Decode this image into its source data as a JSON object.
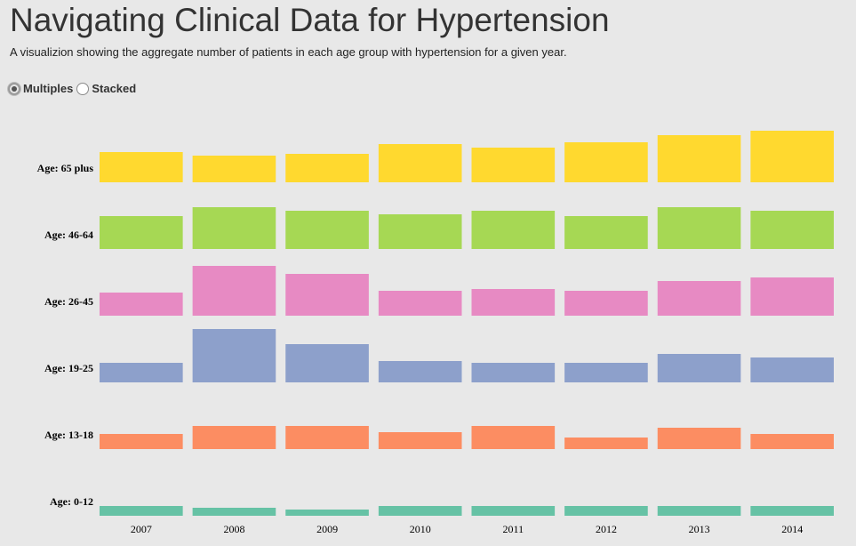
{
  "header": {
    "title": "Navigating Clinical Data for Hypertension",
    "subtitle": "A visualizion showing the aggregate number of patients in each age group with hypertension for a given year."
  },
  "controls": {
    "options": [
      {
        "label": "Multiples",
        "checked": true
      },
      {
        "label": "Stacked",
        "checked": false
      }
    ]
  },
  "chart_data": {
    "type": "bar",
    "layout": "small-multiples",
    "title": "",
    "xlabel": "",
    "ylabel": "",
    "categories": [
      "2007",
      "2008",
      "2009",
      "2010",
      "2011",
      "2012",
      "2013",
      "2014"
    ],
    "series": [
      {
        "name": "Age: 65 plus",
        "color": "#ffd92f",
        "values": [
          34,
          30,
          32,
          43,
          39,
          45,
          53,
          58
        ]
      },
      {
        "name": "Age: 46-64",
        "color": "#a6d854",
        "values": [
          37,
          47,
          43,
          39,
          43,
          37,
          47,
          43
        ]
      },
      {
        "name": "Age: 26-45",
        "color": "#e78ac3",
        "values": [
          26,
          56,
          47,
          28,
          30,
          28,
          39,
          43
        ]
      },
      {
        "name": "Age: 19-25",
        "color": "#8da0cb",
        "values": [
          22,
          60,
          43,
          24,
          22,
          22,
          32,
          28
        ]
      },
      {
        "name": "Age: 13-18",
        "color": "#fc8d62",
        "values": [
          17,
          26,
          26,
          19,
          26,
          13,
          24,
          17
        ]
      },
      {
        "name": "Age: 0-12",
        "color": "#66c2a5",
        "values": [
          11,
          9,
          7,
          11,
          11,
          11,
          11,
          11
        ]
      }
    ],
    "ylim": [
      0,
      60
    ],
    "grid": false,
    "legend": "row labels on left"
  }
}
